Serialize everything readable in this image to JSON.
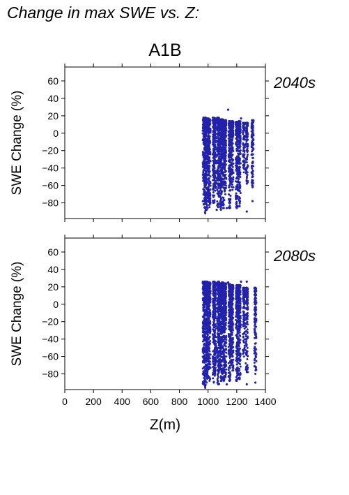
{
  "figure": {
    "title": "Change in max SWE vs. Z:",
    "scenario": "A1B",
    "xlabel": "Z(m)",
    "color": "#2222aa"
  },
  "chart_data": [
    {
      "type": "scatter",
      "period_label": "2040s",
      "ylabel": "SWE Change (%)",
      "xlim": [
        0,
        1400
      ],
      "ylim": [
        -98,
        76
      ],
      "xticks": [
        0,
        200,
        400,
        600,
        800,
        1000,
        1200,
        1400
      ],
      "yticks": [
        60,
        40,
        20,
        0,
        -20,
        -40,
        -60,
        -80
      ],
      "x_tick_labels_shown": false,
      "grid": false,
      "series": [
        {
          "columns": [
            {
              "x": 970,
              "ymin": -82,
              "ymax": 18
            },
            {
              "x": 980,
              "ymin": -92,
              "ymax": 18
            },
            {
              "x": 990,
              "ymin": -88,
              "ymax": 17
            },
            {
              "x": 1000,
              "ymin": -78,
              "ymax": 17
            },
            {
              "x": 1010,
              "ymin": -85,
              "ymax": 16
            },
            {
              "x": 1040,
              "ymin": -80,
              "ymax": 18
            },
            {
              "x": 1050,
              "ymin": -66,
              "ymax": 17
            },
            {
              "x": 1070,
              "ymin": -85,
              "ymax": 18
            },
            {
              "x": 1080,
              "ymin": -60,
              "ymax": 16
            },
            {
              "x": 1090,
              "ymin": -88,
              "ymax": 16
            },
            {
              "x": 1100,
              "ymin": -62,
              "ymax": 16
            },
            {
              "x": 1110,
              "ymin": -86,
              "ymax": 15
            },
            {
              "x": 1120,
              "ymin": -70,
              "ymax": 15
            },
            {
              "x": 1150,
              "ymin": -86,
              "ymax": 14
            },
            {
              "x": 1160,
              "ymin": -55,
              "ymax": 13
            },
            {
              "x": 1170,
              "ymin": -65,
              "ymax": 14
            },
            {
              "x": 1200,
              "ymin": -86,
              "ymax": 13
            },
            {
              "x": 1210,
              "ymin": -62,
              "ymax": 12
            },
            {
              "x": 1220,
              "ymin": -84,
              "ymax": 14
            },
            {
              "x": 1250,
              "ymin": -45,
              "ymax": 12
            },
            {
              "x": 1270,
              "ymin": -58,
              "ymax": 12
            },
            {
              "x": 1310,
              "ymin": -62,
              "ymax": 15
            }
          ],
          "outliers": [
            {
              "x": 1140,
              "y": 27
            },
            {
              "x": 1230,
              "y": 17
            },
            {
              "x": 1270,
              "y": -90
            },
            {
              "x": 1310,
              "y": -78
            },
            {
              "x": 1210,
              "y": -84
            },
            {
              "x": 1130,
              "y": -86
            },
            {
              "x": 1060,
              "y": -88
            }
          ]
        }
      ]
    },
    {
      "type": "scatter",
      "period_label": "2080s",
      "ylabel": "SWE Change (%)",
      "xlim": [
        0,
        1400
      ],
      "ylim": [
        -98,
        76
      ],
      "xticks": [
        0,
        200,
        400,
        600,
        800,
        1000,
        1200,
        1400
      ],
      "yticks": [
        60,
        40,
        20,
        0,
        -20,
        -40,
        -60,
        -80
      ],
      "x_tick_labels_shown": true,
      "grid": false,
      "series": [
        {
          "columns": [
            {
              "x": 970,
              "ymin": -92,
              "ymax": 26
            },
            {
              "x": 980,
              "ymin": -96,
              "ymax": 26
            },
            {
              "x": 990,
              "ymin": -90,
              "ymax": 26
            },
            {
              "x": 1000,
              "ymin": -84,
              "ymax": 25
            },
            {
              "x": 1010,
              "ymin": -88,
              "ymax": 25
            },
            {
              "x": 1040,
              "ymin": -90,
              "ymax": 26
            },
            {
              "x": 1050,
              "ymin": -80,
              "ymax": 25
            },
            {
              "x": 1070,
              "ymin": -92,
              "ymax": 26
            },
            {
              "x": 1080,
              "ymin": -76,
              "ymax": 24
            },
            {
              "x": 1090,
              "ymin": -88,
              "ymax": 24
            },
            {
              "x": 1100,
              "ymin": -80,
              "ymax": 25
            },
            {
              "x": 1110,
              "ymin": -88,
              "ymax": 24
            },
            {
              "x": 1120,
              "ymin": -84,
              "ymax": 24
            },
            {
              "x": 1150,
              "ymin": -88,
              "ymax": 23
            },
            {
              "x": 1160,
              "ymin": -70,
              "ymax": 22
            },
            {
              "x": 1170,
              "ymin": -76,
              "ymax": 22
            },
            {
              "x": 1200,
              "ymin": -88,
              "ymax": 22
            },
            {
              "x": 1210,
              "ymin": -80,
              "ymax": 21
            },
            {
              "x": 1220,
              "ymin": -86,
              "ymax": 22
            },
            {
              "x": 1250,
              "ymin": -60,
              "ymax": 19
            },
            {
              "x": 1270,
              "ymin": -78,
              "ymax": 19
            },
            {
              "x": 1330,
              "ymin": -80,
              "ymax": 19
            }
          ],
          "outliers": [
            {
              "x": 1270,
              "y": 26
            },
            {
              "x": 1230,
              "y": 26
            },
            {
              "x": 1140,
              "y": 25
            },
            {
              "x": 1270,
              "y": -92
            },
            {
              "x": 1330,
              "y": -90
            },
            {
              "x": 1130,
              "y": -92
            }
          ]
        }
      ]
    }
  ]
}
